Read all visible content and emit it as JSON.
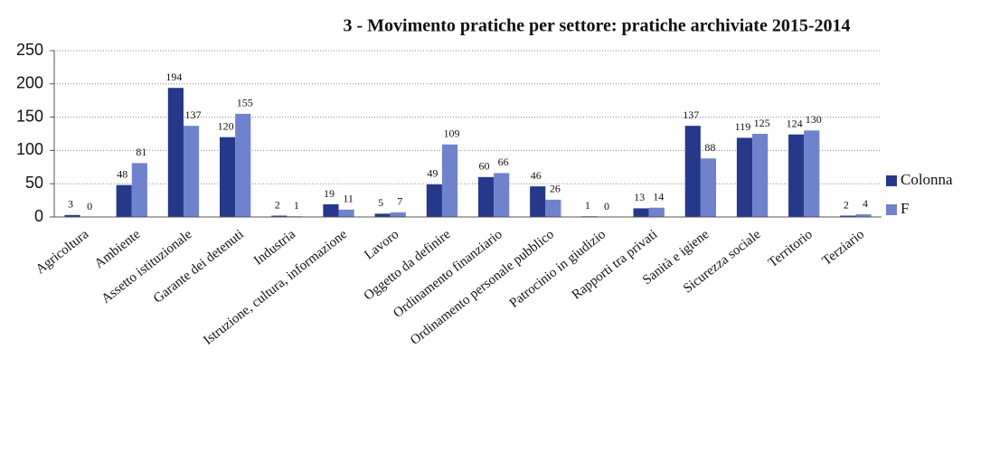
{
  "chart_data": {
    "type": "bar",
    "title": "3 - Movimento pratiche per settore: pratiche archiviate 2015-2014",
    "categories": [
      "Agricoltura",
      "Ambiente",
      "Assetto istituzionale",
      "Garante dei detenuti",
      "Industria",
      "Istruzione, cultura, informazione",
      "Lavoro",
      "Oggetto da definire",
      "Ordinamento finanziario",
      "Ordinamento personale pubblico",
      "Patrocinio in giudizio",
      "Rapporti tra privati",
      "Sanità e igiene",
      "Sicurezza sociale",
      "Territorio",
      "Terziario"
    ],
    "series": [
      {
        "name": "Colonna",
        "color": "#26388a",
        "values": [
          3,
          48,
          194,
          120,
          2,
          19,
          5,
          49,
          60,
          46,
          1,
          13,
          137,
          119,
          124,
          2
        ]
      },
      {
        "name": "F",
        "color": "#6f82cc",
        "values": [
          0,
          81,
          137,
          155,
          1,
          11,
          7,
          109,
          66,
          26,
          0,
          14,
          88,
          125,
          130,
          4
        ]
      }
    ],
    "ylim": [
      0,
      250
    ],
    "yticks": [
      0,
      50,
      100,
      150,
      200,
      250
    ],
    "grid": true,
    "legend": "right"
  }
}
